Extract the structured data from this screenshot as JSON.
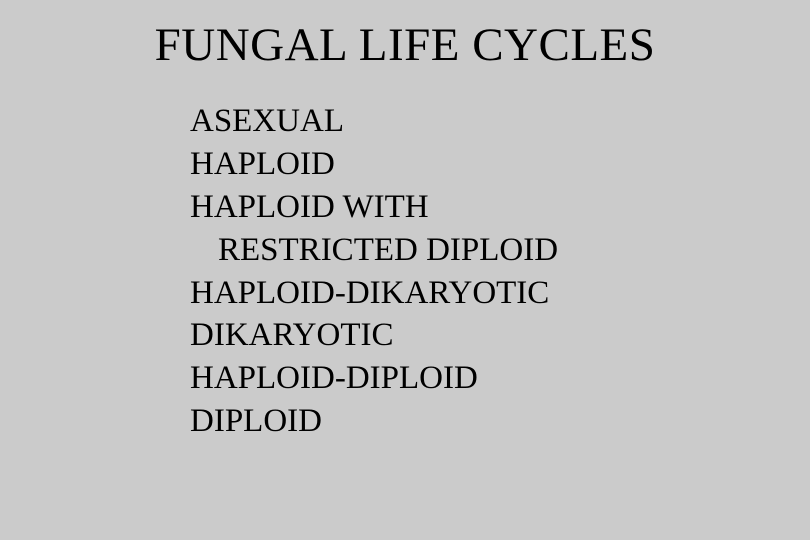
{
  "background_color": "#cbcbcb",
  "text_color": "#000000",
  "title": "FUNGAL LIFE CYCLES",
  "title_fontsize": 47,
  "body_fontsize": 33,
  "items": [
    "ASEXUAL",
    "HAPLOID",
    "HAPLOID WITH",
    "RESTRICTED DIPLOID",
    "HAPLOID-DIKARYOTIC",
    "DIKARYOTIC",
    "HAPLOID-DIPLOID",
    "DIPLOID"
  ],
  "wrap_indent_indices": [
    3
  ]
}
